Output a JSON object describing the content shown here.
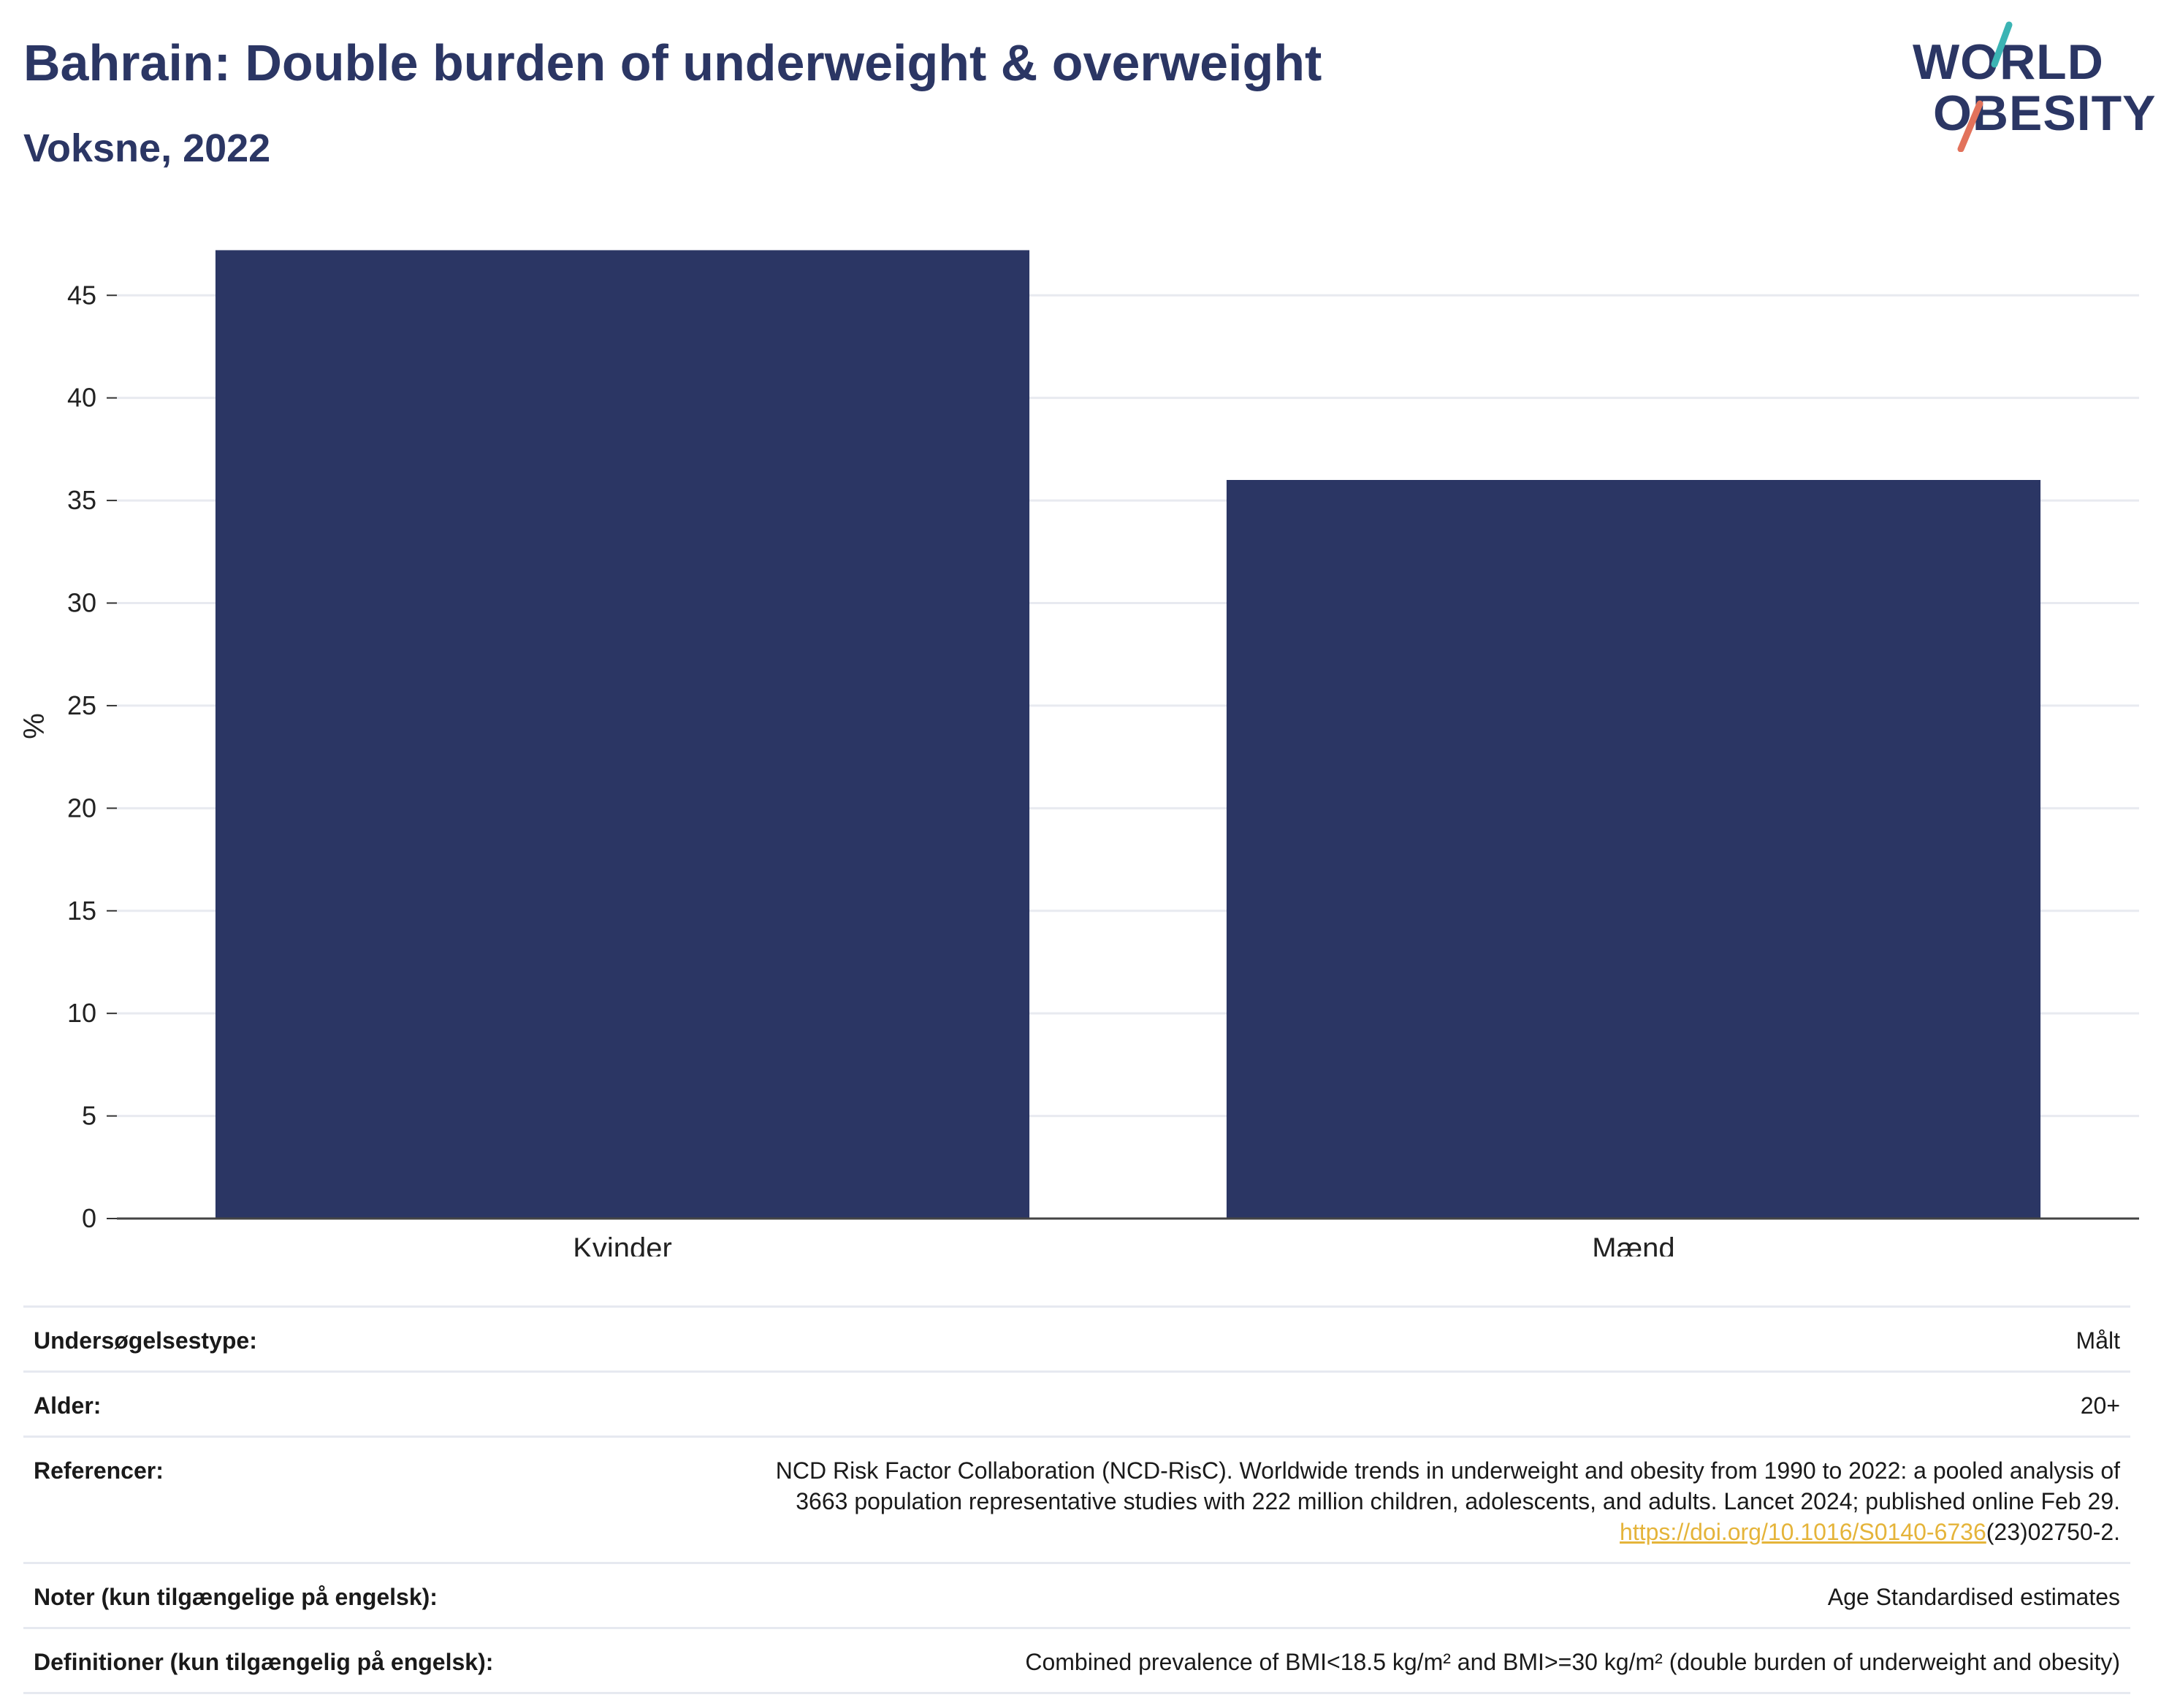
{
  "header": {
    "title": "Bahrain: Double burden of underweight & overweight",
    "subtitle": "Voksne, 2022"
  },
  "logo": {
    "line1": "WORLD",
    "line2": "OBESITY",
    "colors": {
      "text": "#2b3664",
      "slash_top": "#3bb4b4",
      "slash_bottom": "#e2725b"
    }
  },
  "chart_data": {
    "type": "bar",
    "categories": [
      "Kvinder",
      "Mænd"
    ],
    "values": [
      47.2,
      36.0
    ],
    "title": "",
    "xlabel": "",
    "ylabel": "%",
    "ylim": [
      0,
      48
    ],
    "yticks": [
      0,
      5,
      10,
      15,
      20,
      25,
      30,
      35,
      40,
      45
    ],
    "grid": true,
    "legend": "none",
    "bar_color": "#2b3664"
  },
  "meta": {
    "rows": [
      {
        "label": "Undersøgelsestype:",
        "value": "Målt"
      },
      {
        "label": "Alder:",
        "value": "20+"
      },
      {
        "label": "Referencer:",
        "value_line1": "NCD Risk Factor Collaboration (NCD-RisC). Worldwide trends in underweight and obesity from 1990 to 2022: a pooled analysis of",
        "value_line2": "3663 population representative studies with 222 million children, adolescents, and adults. Lancet 2024; published online Feb 29.",
        "link_text": "https://doi.org/10.1016/S0140-6736",
        "link_suffix": "(23)02750-2."
      },
      {
        "label": "Noter (kun tilgængelige på engelsk):",
        "value": "Age Standardised estimates"
      },
      {
        "label": "Definitioner (kun tilgængelig på engelsk):",
        "value": "Combined prevalence of BMI<18.5 kg/m² and BMI>=30 kg/m² (double burden of underweight and obesity)"
      }
    ]
  }
}
